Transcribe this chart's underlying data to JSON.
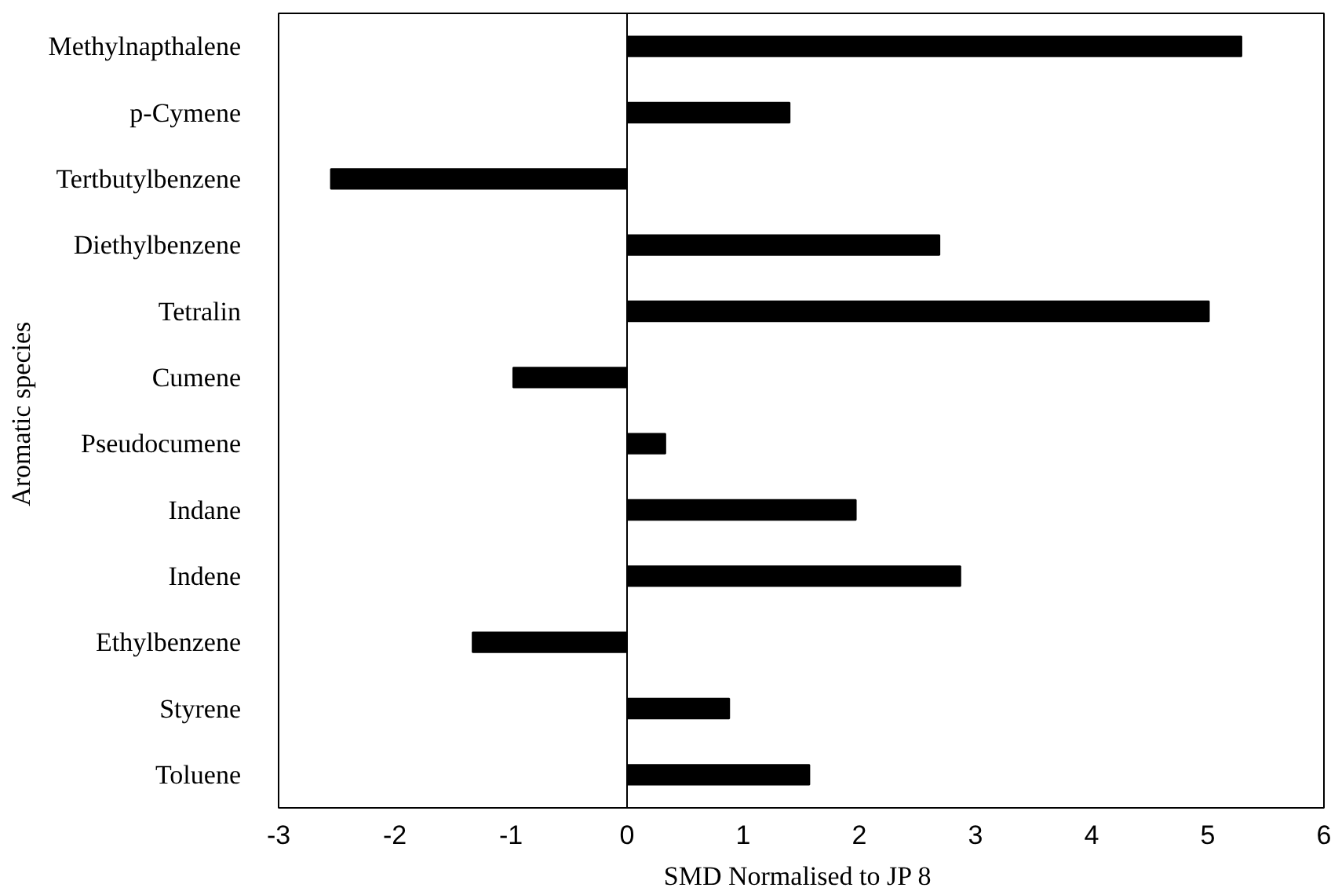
{
  "chart_data": {
    "type": "bar",
    "orientation": "horizontal",
    "xlabel": "SMD Normalised  to JP 8",
    "ylabel": "Aromatic  species",
    "categories": [
      "Methylnapthalene",
      "p-Cymene",
      "Tertbutylbenzene",
      "Diethylbenzene",
      "Tetralin",
      "Cumene",
      "Pseudocumene",
      "Indane",
      "Indene",
      "Ethylbenzene",
      "Styrene",
      "Toluene"
    ],
    "values": [
      5.29,
      1.4,
      -2.55,
      2.69,
      5.01,
      -0.98,
      0.33,
      1.97,
      2.87,
      -1.33,
      0.88,
      1.57
    ],
    "color": "#000000",
    "xlim": [
      -3,
      6
    ],
    "xticks": [
      -3,
      -2,
      -1,
      0,
      1,
      2,
      3,
      4,
      5,
      6
    ],
    "grid": false,
    "ref_lines": [
      {
        "axis": "x",
        "value": 0,
        "color": "#000000"
      }
    ]
  }
}
